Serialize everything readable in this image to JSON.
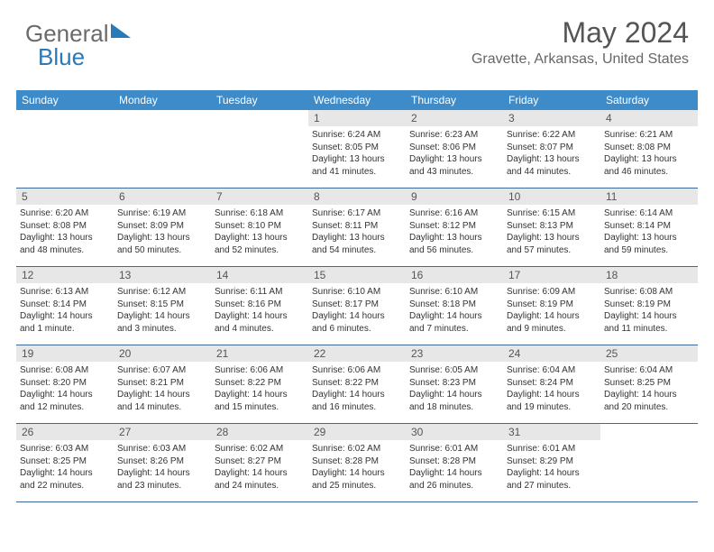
{
  "logo": {
    "text_gray": "General",
    "text_blue": "Blue"
  },
  "header": {
    "month_title": "May 2024",
    "location": "Gravette, Arkansas, United States"
  },
  "colors": {
    "header_blue": "#3d8bc8",
    "row_border": "#3d6a99",
    "daynum_bg": "#e7e7e7",
    "text": "#333333",
    "logo_blue": "#2a7ab8",
    "logo_gray": "#6a6a6a"
  },
  "day_names": [
    "Sunday",
    "Monday",
    "Tuesday",
    "Wednesday",
    "Thursday",
    "Friday",
    "Saturday"
  ],
  "weeks": [
    [
      null,
      null,
      null,
      {
        "n": "1",
        "sr": "6:24 AM",
        "ss": "8:05 PM",
        "dl": "13 hours and 41 minutes."
      },
      {
        "n": "2",
        "sr": "6:23 AM",
        "ss": "8:06 PM",
        "dl": "13 hours and 43 minutes."
      },
      {
        "n": "3",
        "sr": "6:22 AM",
        "ss": "8:07 PM",
        "dl": "13 hours and 44 minutes."
      },
      {
        "n": "4",
        "sr": "6:21 AM",
        "ss": "8:08 PM",
        "dl": "13 hours and 46 minutes."
      }
    ],
    [
      {
        "n": "5",
        "sr": "6:20 AM",
        "ss": "8:08 PM",
        "dl": "13 hours and 48 minutes."
      },
      {
        "n": "6",
        "sr": "6:19 AM",
        "ss": "8:09 PM",
        "dl": "13 hours and 50 minutes."
      },
      {
        "n": "7",
        "sr": "6:18 AM",
        "ss": "8:10 PM",
        "dl": "13 hours and 52 minutes."
      },
      {
        "n": "8",
        "sr": "6:17 AM",
        "ss": "8:11 PM",
        "dl": "13 hours and 54 minutes."
      },
      {
        "n": "9",
        "sr": "6:16 AM",
        "ss": "8:12 PM",
        "dl": "13 hours and 56 minutes."
      },
      {
        "n": "10",
        "sr": "6:15 AM",
        "ss": "8:13 PM",
        "dl": "13 hours and 57 minutes."
      },
      {
        "n": "11",
        "sr": "6:14 AM",
        "ss": "8:14 PM",
        "dl": "13 hours and 59 minutes."
      }
    ],
    [
      {
        "n": "12",
        "sr": "6:13 AM",
        "ss": "8:14 PM",
        "dl": "14 hours and 1 minute."
      },
      {
        "n": "13",
        "sr": "6:12 AM",
        "ss": "8:15 PM",
        "dl": "14 hours and 3 minutes."
      },
      {
        "n": "14",
        "sr": "6:11 AM",
        "ss": "8:16 PM",
        "dl": "14 hours and 4 minutes."
      },
      {
        "n": "15",
        "sr": "6:10 AM",
        "ss": "8:17 PM",
        "dl": "14 hours and 6 minutes."
      },
      {
        "n": "16",
        "sr": "6:10 AM",
        "ss": "8:18 PM",
        "dl": "14 hours and 7 minutes."
      },
      {
        "n": "17",
        "sr": "6:09 AM",
        "ss": "8:19 PM",
        "dl": "14 hours and 9 minutes."
      },
      {
        "n": "18",
        "sr": "6:08 AM",
        "ss": "8:19 PM",
        "dl": "14 hours and 11 minutes."
      }
    ],
    [
      {
        "n": "19",
        "sr": "6:08 AM",
        "ss": "8:20 PM",
        "dl": "14 hours and 12 minutes."
      },
      {
        "n": "20",
        "sr": "6:07 AM",
        "ss": "8:21 PM",
        "dl": "14 hours and 14 minutes."
      },
      {
        "n": "21",
        "sr": "6:06 AM",
        "ss": "8:22 PM",
        "dl": "14 hours and 15 minutes."
      },
      {
        "n": "22",
        "sr": "6:06 AM",
        "ss": "8:22 PM",
        "dl": "14 hours and 16 minutes."
      },
      {
        "n": "23",
        "sr": "6:05 AM",
        "ss": "8:23 PM",
        "dl": "14 hours and 18 minutes."
      },
      {
        "n": "24",
        "sr": "6:04 AM",
        "ss": "8:24 PM",
        "dl": "14 hours and 19 minutes."
      },
      {
        "n": "25",
        "sr": "6:04 AM",
        "ss": "8:25 PM",
        "dl": "14 hours and 20 minutes."
      }
    ],
    [
      {
        "n": "26",
        "sr": "6:03 AM",
        "ss": "8:25 PM",
        "dl": "14 hours and 22 minutes."
      },
      {
        "n": "27",
        "sr": "6:03 AM",
        "ss": "8:26 PM",
        "dl": "14 hours and 23 minutes."
      },
      {
        "n": "28",
        "sr": "6:02 AM",
        "ss": "8:27 PM",
        "dl": "14 hours and 24 minutes."
      },
      {
        "n": "29",
        "sr": "6:02 AM",
        "ss": "8:28 PM",
        "dl": "14 hours and 25 minutes."
      },
      {
        "n": "30",
        "sr": "6:01 AM",
        "ss": "8:28 PM",
        "dl": "14 hours and 26 minutes."
      },
      {
        "n": "31",
        "sr": "6:01 AM",
        "ss": "8:29 PM",
        "dl": "14 hours and 27 minutes."
      },
      null
    ]
  ],
  "labels": {
    "sunrise_prefix": "Sunrise: ",
    "sunset_prefix": "Sunset: ",
    "daylight_prefix": "Daylight: "
  }
}
